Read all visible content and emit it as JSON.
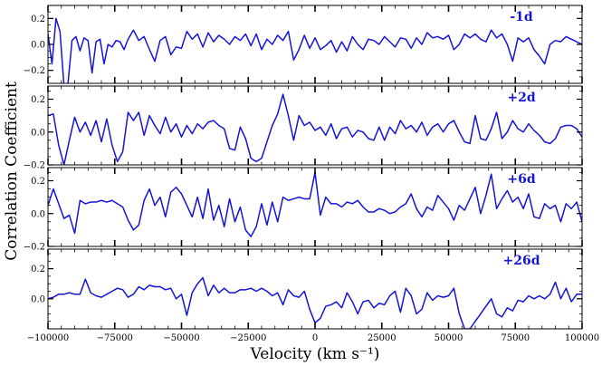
{
  "chart_data": {
    "type": "line",
    "xlabel": "Velocity (km s⁻¹)",
    "ylabel": "Correlation Coefficient",
    "xlim": [
      -100000,
      100000
    ],
    "x_ticks": [
      -100000,
      -75000,
      -50000,
      -25000,
      0,
      25000,
      50000,
      75000,
      100000
    ],
    "x_tick_labels": [
      "−100000",
      "−75000",
      "−50000",
      "−25000",
      "0",
      "25000",
      "50000",
      "75000",
      "100000"
    ],
    "line_color": "#1515d6",
    "panels": [
      {
        "label": "-1d",
        "ylim": [
          -0.3,
          0.3
        ],
        "y_ticks": [
          -0.2,
          0.0,
          0.2
        ],
        "y_tick_labels": [
          "−0.2",
          "0.0",
          "0.2"
        ],
        "x": [
          -100000,
          -98500,
          -97000,
          -95500,
          -94000,
          -92500,
          -91000,
          -89500,
          -88000,
          -86500,
          -85000,
          -83500,
          -82000,
          -80500,
          -79000,
          -77500,
          -76000,
          -74500,
          -73000,
          -71500,
          -70000,
          -68000,
          -66000,
          -64000,
          -62000,
          -60000,
          -58000,
          -56000,
          -54000,
          -52000,
          -50000,
          -48000,
          -46000,
          -44000,
          -42000,
          -40000,
          -38000,
          -36000,
          -34000,
          -32000,
          -30000,
          -28000,
          -26000,
          -24000,
          -22000,
          -20000,
          -18000,
          -16000,
          -14000,
          -12000,
          -10000,
          -8000,
          -6000,
          -4000,
          -2000,
          0,
          2000,
          4000,
          6000,
          8000,
          10000,
          12000,
          14000,
          16000,
          18000,
          20000,
          22000,
          24000,
          26000,
          28000,
          30000,
          32000,
          34000,
          36000,
          38000,
          40000,
          42000,
          44000,
          46000,
          48000,
          50000,
          52000,
          54000,
          56000,
          58000,
          60000,
          62000,
          64000,
          66000,
          68000,
          70000,
          72000,
          74000,
          76000,
          78000,
          80000,
          82000,
          84000,
          86000,
          88000,
          90000,
          92000,
          94000,
          96000,
          98000,
          100000
        ],
        "y": [
          0.08,
          -0.15,
          0.2,
          0.1,
          -0.32,
          -0.3,
          0.03,
          0.06,
          -0.05,
          0.05,
          0.03,
          -0.22,
          0.02,
          0.04,
          -0.15,
          0.0,
          -0.02,
          0.03,
          0.02,
          -0.04,
          0.04,
          0.11,
          0.03,
          0.06,
          -0.04,
          -0.13,
          0.03,
          0.06,
          -0.08,
          -0.02,
          -0.03,
          0.1,
          0.04,
          0.08,
          -0.02,
          0.09,
          0.02,
          0.07,
          0.04,
          0.0,
          0.06,
          0.03,
          0.08,
          -0.01,
          0.08,
          -0.04,
          0.04,
          0.0,
          0.07,
          0.03,
          0.1,
          -0.12,
          -0.04,
          0.07,
          -0.03,
          0.05,
          -0.04,
          -0.01,
          0.03,
          -0.06,
          0.02,
          -0.05,
          0.06,
          0.0,
          -0.04,
          0.04,
          0.03,
          0.0,
          0.06,
          0.02,
          -0.02,
          0.05,
          0.04,
          -0.03,
          0.05,
          0.0,
          0.09,
          0.05,
          0.06,
          0.04,
          0.07,
          -0.04,
          0.0,
          0.08,
          0.05,
          0.08,
          0.04,
          0.02,
          0.11,
          0.05,
          0.08,
          0.0,
          -0.13,
          0.05,
          0.02,
          0.05,
          -0.04,
          -0.09,
          -0.15,
          0.0,
          0.03,
          0.02,
          0.06,
          0.04,
          0.02,
          0.0
        ]
      },
      {
        "label": "+2d",
        "ylim": [
          -0.2,
          0.28
        ],
        "y_ticks": [
          -0.2,
          0.0,
          0.2
        ],
        "y_tick_labels": [
          "−0.2",
          "0.0",
          "0.2"
        ],
        "x": [
          -100000,
          -98000,
          -96000,
          -94000,
          -92000,
          -90000,
          -88000,
          -86000,
          -84000,
          -82000,
          -80000,
          -78000,
          -76000,
          -74000,
          -72000,
          -70000,
          -68000,
          -66000,
          -64000,
          -62000,
          -60000,
          -58000,
          -56000,
          -54000,
          -52000,
          -50000,
          -48000,
          -46000,
          -44000,
          -42000,
          -40000,
          -38000,
          -36000,
          -34000,
          -32000,
          -30000,
          -28000,
          -26000,
          -24000,
          -22000,
          -20000,
          -18000,
          -16000,
          -14000,
          -12000,
          -10000,
          -8000,
          -6000,
          -4000,
          -2000,
          0,
          2000,
          4000,
          6000,
          8000,
          10000,
          12000,
          14000,
          16000,
          18000,
          20000,
          22000,
          24000,
          26000,
          28000,
          30000,
          32000,
          34000,
          36000,
          38000,
          40000,
          42000,
          44000,
          46000,
          48000,
          50000,
          52000,
          54000,
          56000,
          58000,
          60000,
          62000,
          64000,
          66000,
          68000,
          70000,
          72000,
          74000,
          76000,
          78000,
          80000,
          82000,
          84000,
          86000,
          88000,
          90000,
          92000,
          94000,
          96000,
          98000,
          100000
        ],
        "y": [
          0.1,
          0.11,
          -0.08,
          -0.2,
          -0.05,
          0.09,
          0.0,
          0.06,
          -0.02,
          0.07,
          -0.06,
          0.08,
          -0.08,
          -0.18,
          -0.12,
          0.12,
          0.07,
          0.12,
          -0.02,
          0.1,
          0.04,
          -0.01,
          0.09,
          0.0,
          0.05,
          -0.03,
          0.04,
          -0.01,
          0.05,
          0.02,
          0.06,
          0.07,
          0.04,
          0.02,
          -0.1,
          -0.11,
          0.03,
          -0.04,
          -0.16,
          -0.18,
          -0.16,
          -0.06,
          0.04,
          0.11,
          0.23,
          0.1,
          -0.05,
          0.1,
          0.04,
          0.06,
          0.01,
          0.03,
          -0.02,
          0.05,
          -0.04,
          0.02,
          0.03,
          -0.03,
          0.01,
          0.0,
          -0.04,
          -0.05,
          0.03,
          -0.05,
          0.03,
          -0.01,
          0.07,
          0.02,
          0.04,
          0.0,
          0.06,
          -0.02,
          0.03,
          0.05,
          0.0,
          0.05,
          0.07,
          0.0,
          -0.06,
          -0.07,
          0.1,
          -0.04,
          -0.05,
          0.02,
          0.12,
          -0.04,
          0.0,
          0.07,
          0.02,
          0.0,
          0.05,
          0.01,
          -0.02,
          -0.06,
          -0.07,
          -0.04,
          0.03,
          0.04,
          0.04,
          0.02,
          -0.03
        ]
      },
      {
        "label": "+6d",
        "ylim": [
          -0.2,
          0.28
        ],
        "y_ticks": [
          -0.2,
          0.0,
          0.2
        ],
        "y_tick_labels": [
          "−0.2",
          "0.0",
          "0.2"
        ],
        "x": [
          -100000,
          -98000,
          -96000,
          -94000,
          -92000,
          -90000,
          -88000,
          -86000,
          -84000,
          -82000,
          -80000,
          -78000,
          -76000,
          -74000,
          -72000,
          -70000,
          -68000,
          -66000,
          -64000,
          -62000,
          -60000,
          -58000,
          -56000,
          -54000,
          -52000,
          -50000,
          -48000,
          -46000,
          -44000,
          -42000,
          -40000,
          -38000,
          -36000,
          -34000,
          -32000,
          -30000,
          -28000,
          -26000,
          -24000,
          -22000,
          -20000,
          -18000,
          -16000,
          -14000,
          -12000,
          -10000,
          -8000,
          -6000,
          -4000,
          -2000,
          0,
          2000,
          4000,
          6000,
          8000,
          10000,
          12000,
          14000,
          16000,
          18000,
          20000,
          22000,
          24000,
          26000,
          28000,
          30000,
          32000,
          34000,
          36000,
          38000,
          40000,
          42000,
          44000,
          46000,
          48000,
          50000,
          52000,
          54000,
          56000,
          58000,
          60000,
          62000,
          64000,
          66000,
          68000,
          70000,
          72000,
          74000,
          76000,
          78000,
          80000,
          82000,
          84000,
          86000,
          88000,
          90000,
          92000,
          94000,
          96000,
          98000,
          100000
        ],
        "y": [
          0.05,
          0.15,
          0.06,
          -0.03,
          -0.01,
          -0.12,
          0.08,
          0.06,
          0.07,
          0.07,
          0.08,
          0.07,
          0.08,
          0.06,
          0.04,
          -0.04,
          -0.1,
          -0.07,
          0.08,
          0.15,
          0.05,
          0.1,
          -0.02,
          0.13,
          0.16,
          0.12,
          0.05,
          -0.02,
          0.1,
          -0.03,
          0.15,
          -0.04,
          0.05,
          -0.08,
          0.09,
          -0.05,
          0.04,
          -0.1,
          -0.14,
          -0.08,
          0.06,
          -0.07,
          0.07,
          -0.05,
          0.1,
          0.08,
          0.09,
          0.1,
          0.09,
          0.09,
          0.25,
          -0.01,
          0.1,
          0.06,
          0.06,
          0.04,
          0.07,
          0.06,
          0.08,
          0.04,
          0.01,
          0.01,
          0.03,
          0.02,
          0.0,
          0.01,
          0.04,
          0.06,
          0.12,
          0.03,
          -0.02,
          0.04,
          0.02,
          0.11,
          0.07,
          0.03,
          -0.04,
          0.05,
          0.02,
          0.09,
          0.16,
          0.0,
          0.11,
          0.24,
          0.03,
          0.09,
          0.14,
          0.07,
          0.1,
          0.03,
          0.12,
          -0.02,
          -0.03,
          0.06,
          0.03,
          0.05,
          -0.05,
          0.06,
          0.03,
          0.07,
          -0.05
        ]
      },
      {
        "label": "+26d",
        "ylim": [
          -0.2,
          0.33
        ],
        "y_ticks": [
          0.0,
          0.2
        ],
        "y_tick_labels": [
          "0.0",
          "0.2"
        ],
        "x": [
          -100000,
          -98000,
          -96000,
          -94000,
          -92000,
          -90000,
          -88000,
          -86000,
          -84000,
          -82000,
          -80000,
          -78000,
          -76000,
          -74000,
          -72000,
          -70000,
          -68000,
          -66000,
          -64000,
          -62000,
          -60000,
          -58000,
          -56000,
          -54000,
          -52000,
          -50000,
          -48000,
          -46000,
          -44000,
          -42000,
          -40000,
          -38000,
          -36000,
          -34000,
          -32000,
          -30000,
          -28000,
          -26000,
          -24000,
          -22000,
          -20000,
          -18000,
          -16000,
          -14000,
          -12000,
          -10000,
          -8000,
          -6000,
          -4000,
          -2000,
          0,
          2000,
          4000,
          6000,
          8000,
          10000,
          12000,
          14000,
          16000,
          18000,
          20000,
          22000,
          24000,
          26000,
          28000,
          30000,
          32000,
          34000,
          36000,
          38000,
          40000,
          42000,
          44000,
          46000,
          48000,
          50000,
          52000,
          54000,
          56000,
          58000,
          60000,
          62000,
          64000,
          66000,
          68000,
          70000,
          72000,
          74000,
          76000,
          78000,
          80000,
          82000,
          84000,
          86000,
          88000,
          90000,
          92000,
          94000,
          96000,
          98000,
          100000
        ],
        "y": [
          0.0,
          0.01,
          0.03,
          0.03,
          0.04,
          0.03,
          0.03,
          0.13,
          0.04,
          0.02,
          0.01,
          0.03,
          0.05,
          0.07,
          0.06,
          0.01,
          0.03,
          0.08,
          0.06,
          0.09,
          0.08,
          0.08,
          0.06,
          0.07,
          0.0,
          0.03,
          -0.11,
          0.04,
          0.1,
          0.14,
          0.02,
          0.09,
          0.04,
          0.07,
          0.04,
          0.04,
          0.06,
          0.06,
          0.07,
          0.05,
          0.07,
          0.05,
          0.02,
          0.04,
          -0.04,
          0.06,
          0.02,
          0.01,
          0.05,
          -0.07,
          -0.16,
          -0.13,
          -0.05,
          -0.04,
          -0.02,
          -0.06,
          0.04,
          -0.02,
          -0.1,
          -0.02,
          -0.01,
          -0.06,
          -0.03,
          -0.04,
          0.02,
          0.05,
          -0.09,
          0.07,
          0.02,
          -0.1,
          -0.07,
          0.04,
          -0.01,
          0.02,
          0.01,
          0.02,
          0.07,
          -0.1,
          -0.2,
          -0.2,
          -0.15,
          -0.1,
          -0.05,
          0.0,
          -0.1,
          -0.12,
          -0.06,
          -0.08,
          -0.01,
          -0.02,
          0.02,
          0.0,
          0.02,
          0.0,
          0.03,
          0.11,
          0.0,
          0.07,
          -0.02,
          0.03,
          0.03
        ]
      }
    ]
  }
}
